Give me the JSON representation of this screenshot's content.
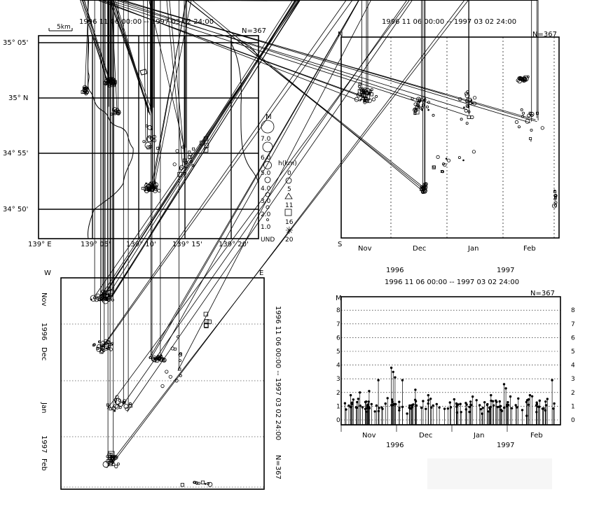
{
  "period": "1996 11 06 00:00  --  1997 03 02 24:00",
  "count": "N=367",
  "map": {
    "scale_label": "5km",
    "lat_ticks": [
      "35° 05'",
      "35° N",
      "34° 55'",
      "34° 50'"
    ],
    "lon_ticks": [
      "139° E",
      "139° 05'",
      "139° 10'",
      "139° 15'",
      "139° 20'"
    ],
    "magnitude_legend": {
      "title": "M",
      "values": [
        "7.0",
        "6.0",
        "5.0",
        "4.0",
        "3.0",
        "2.0",
        "1.0"
      ]
    },
    "depth_legend": {
      "title": "h(km)",
      "values": [
        "0",
        "5",
        "11",
        "16",
        "20",
        "UND"
      ]
    }
  },
  "ns_plot": {
    "top_label": "N",
    "bottom_label": "S",
    "months": [
      "Nov",
      "Dec",
      "Jan",
      "Feb"
    ]
  },
  "we_plot": {
    "left_label": "W",
    "right_label": "E",
    "months": [
      "Nov",
      "Dec",
      "Jan",
      "Feb"
    ],
    "years": [
      "1996",
      "1997"
    ]
  },
  "mt_plot": {
    "axis_label": "M",
    "months": [
      "Nov",
      "Dec",
      "Jan",
      "Feb"
    ],
    "years": [
      "1996",
      "1997"
    ],
    "y_ticks": [
      "0",
      "1",
      "2",
      "3",
      "4",
      "5",
      "6",
      "7",
      "8"
    ]
  },
  "chart_data": {
    "type": "scatter",
    "time_range": [
      "1996-11-06",
      "1997-03-02"
    ],
    "ylim_magnitude": [
      0,
      8.5
    ],
    "events_sample": [
      {
        "day": "1996-11-10",
        "M": 1.8
      },
      {
        "day": "1996-11-15",
        "M": 2.0
      },
      {
        "day": "1996-11-20",
        "M": 2.1
      },
      {
        "day": "1996-11-25",
        "M": 2.9
      },
      {
        "day": "1996-12-02",
        "M": 3.8
      },
      {
        "day": "1996-12-03",
        "M": 3.5
      },
      {
        "day": "1996-12-04",
        "M": 3.1
      },
      {
        "day": "1996-12-08",
        "M": 2.9
      },
      {
        "day": "1996-12-15",
        "M": 2.2
      },
      {
        "day": "1996-12-22",
        "M": 1.8
      },
      {
        "day": "1997-01-05",
        "M": 1.5
      },
      {
        "day": "1997-01-15",
        "M": 1.7
      },
      {
        "day": "1997-01-25",
        "M": 1.4
      },
      {
        "day": "1997-02-01",
        "M": 2.6
      },
      {
        "day": "1997-02-02",
        "M": 2.3
      },
      {
        "day": "1997-02-15",
        "M": 1.8
      },
      {
        "day": "1997-02-27",
        "M": 2.9
      }
    ]
  }
}
